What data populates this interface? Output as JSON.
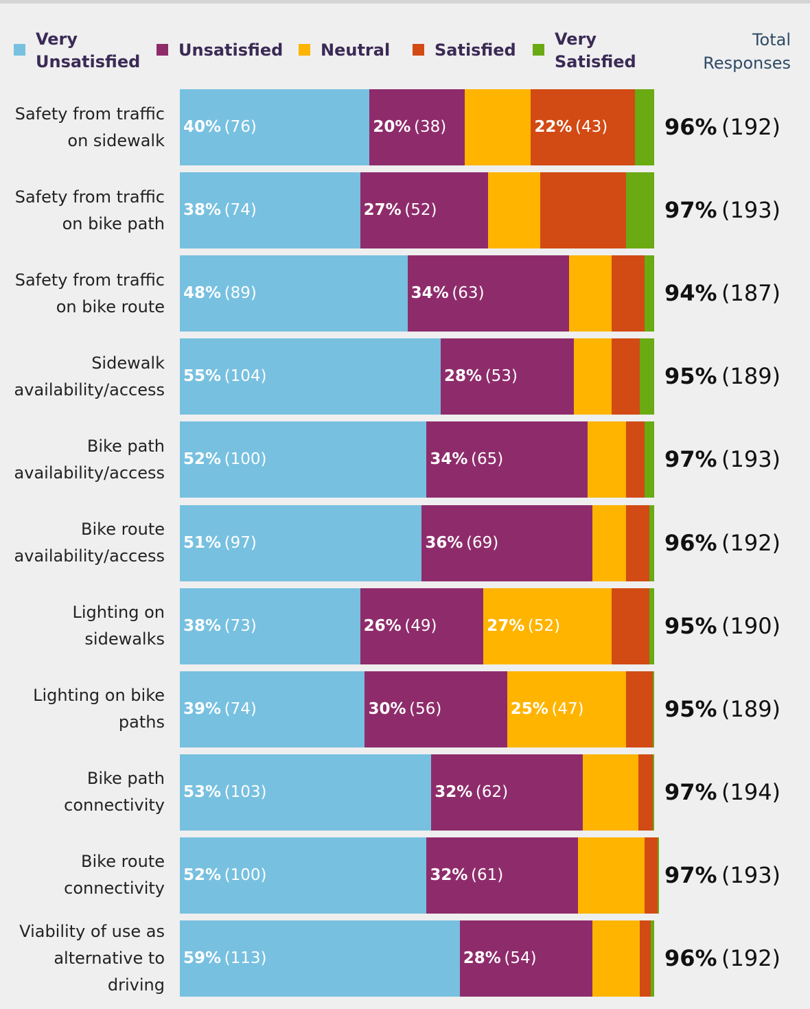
{
  "chart_data": {
    "type": "stacked-bar-horizontal",
    "total_header": "Total\nResponses",
    "xlim": [
      0,
      100
    ],
    "categories": [
      "Safety from traffic\non sidewalk",
      "Safety from traffic\non bike path",
      "Safety from traffic\non bike route",
      "Sidewalk\navailability/access",
      "Bike path\navailability/access",
      "Bike route\navailability/access",
      "Lighting on\nsidewalks",
      "Lighting on bike\npaths",
      "Bike path\nconnectivity",
      "Bike route\nconnectivity",
      "Viability of use as\nalternative to\ndriving"
    ],
    "series": [
      {
        "name": "Very\nUnsatisfied",
        "color": "#77c0e0",
        "values": [
          40,
          38,
          48,
          55,
          52,
          51,
          38,
          39,
          53,
          52,
          59
        ],
        "value_labels": [
          "40%",
          "38%",
          "48%",
          "55%",
          "52%",
          "51%",
          "38%",
          "39%",
          "53%",
          "52%",
          "59%"
        ],
        "count_labels": [
          "(76)",
          "(74)",
          "(89)",
          "(104)",
          "(100)",
          "(97)",
          "(73)",
          "(74)",
          "(103)",
          "(100)",
          "(113)"
        ]
      },
      {
        "name": "Unsatisfied",
        "color": "#8e2c6b",
        "values": [
          20,
          27,
          34,
          28,
          34,
          36,
          26,
          30,
          32,
          32,
          28
        ],
        "value_labels": [
          "20%",
          "27%",
          "34%",
          "28%",
          "34%",
          "36%",
          "26%",
          "30%",
          "32%",
          "32%",
          "28%"
        ],
        "count_labels": [
          "(38)",
          "(52)",
          "(63)",
          "(53)",
          "(65)",
          "(69)",
          "(49)",
          "(56)",
          "(62)",
          "(61)",
          "(54)"
        ]
      },
      {
        "name": "Neutral",
        "color": "#ffb400",
        "values": [
          14,
          11,
          9,
          8,
          8,
          7,
          27,
          25,
          11.7,
          14,
          10
        ],
        "value_labels": [
          null,
          null,
          null,
          null,
          null,
          null,
          "27%",
          "25%",
          null,
          null,
          null
        ],
        "count_labels": [
          null,
          null,
          null,
          null,
          null,
          null,
          "(52)",
          "(47)",
          null,
          null,
          null
        ]
      },
      {
        "name": "Satisfied",
        "color": "#d24a14",
        "values": [
          22,
          18,
          7,
          6,
          4,
          5,
          8,
          5.7,
          3,
          2.7,
          2.3
        ],
        "value_labels": [
          "22%",
          null,
          null,
          null,
          null,
          null,
          null,
          null,
          null,
          null,
          null
        ],
        "count_labels": [
          "(43)",
          null,
          null,
          null,
          null,
          null,
          null,
          null,
          null,
          null,
          null
        ]
      },
      {
        "name": "Very\nSatisfied",
        "color": "#6aaa12",
        "values": [
          4,
          6,
          2,
          3,
          2,
          1,
          1,
          0.3,
          0.3,
          0.3,
          0.7
        ],
        "value_labels": [
          null,
          null,
          null,
          null,
          null,
          null,
          null,
          null,
          null,
          null,
          null
        ],
        "count_labels": [
          null,
          null,
          null,
          null,
          null,
          null,
          null,
          null,
          null,
          null,
          null
        ]
      }
    ],
    "total_pct_labels": [
      "96%",
      "97%",
      "94%",
      "95%",
      "97%",
      "96%",
      "95%",
      "95%",
      "97%",
      "97%",
      "96%"
    ],
    "total_count_labels": [
      "(192)",
      "(193)",
      "(187)",
      "(189)",
      "(193)",
      "(192)",
      "(190)",
      "(189)",
      "(194)",
      "(193)",
      "(192)"
    ]
  }
}
